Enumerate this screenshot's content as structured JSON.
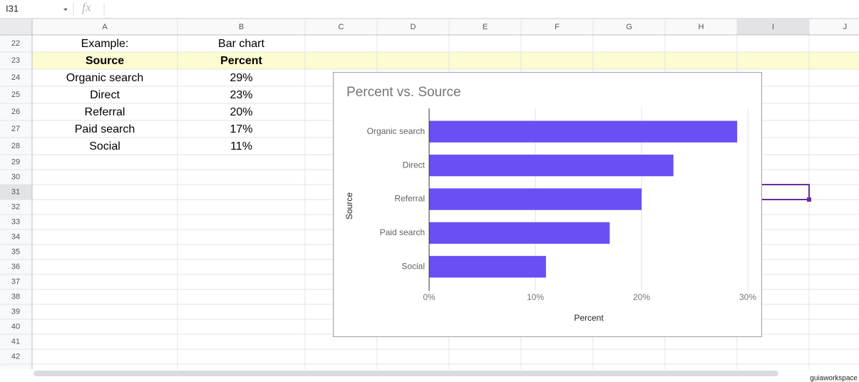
{
  "name_box": "I31",
  "formula_icon": "fx",
  "columns": [
    "A",
    "B",
    "C",
    "D",
    "E",
    "F",
    "G",
    "H",
    "I",
    "J"
  ],
  "row_numbers": [
    "22",
    "23",
    "24",
    "25",
    "26",
    "27",
    "28",
    "29",
    "30",
    "31",
    "32",
    "33",
    "34",
    "35",
    "36",
    "37",
    "38",
    "39",
    "40",
    "41",
    "42"
  ],
  "table": {
    "rows": [
      [
        "Example:",
        "Bar chart"
      ],
      [
        "Source",
        "Percent"
      ],
      [
        "Organic search",
        "29%"
      ],
      [
        "Direct",
        "23%"
      ],
      [
        "Referral",
        "20%"
      ],
      [
        "Paid search",
        "17%"
      ],
      [
        "Social",
        "11%"
      ]
    ]
  },
  "chart_data": {
    "type": "bar",
    "orientation": "horizontal",
    "title": "Percent vs. Source",
    "x_label": "Percent",
    "y_label": "Source",
    "categories": [
      "Organic search",
      "Direct",
      "Referral",
      "Paid search",
      "Social"
    ],
    "values": [
      29,
      23,
      20,
      17,
      11
    ],
    "color": "#6a4ff4",
    "xlim": [
      0,
      30
    ],
    "xticks": [
      {
        "value": 0,
        "label": "0%"
      },
      {
        "value": 10,
        "label": "10%"
      },
      {
        "value": 20,
        "label": "20%"
      },
      {
        "value": 30,
        "label": "30%"
      }
    ],
    "grid": true
  },
  "watermark": "guiaworkspace"
}
